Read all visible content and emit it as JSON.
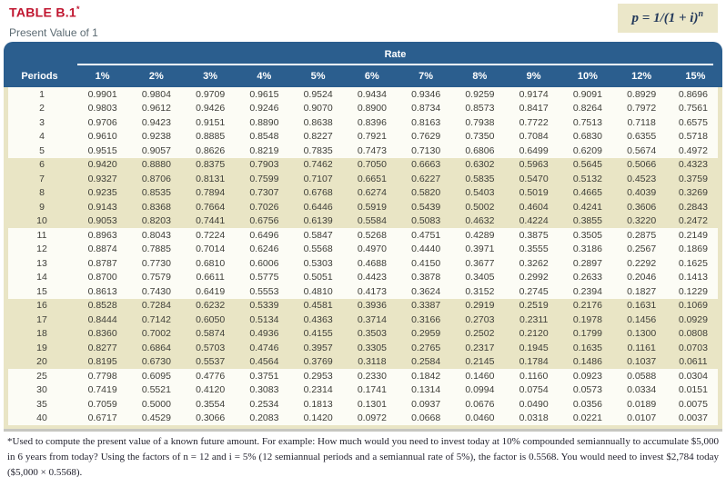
{
  "header": {
    "title": "TABLE B.1",
    "title_mark": "*",
    "subtitle": "Present Value of 1",
    "formula": {
      "body": "p = 1/(1 + i)",
      "exponent": "n"
    }
  },
  "table": {
    "rate_label": "Rate",
    "periods_label": "Periods",
    "rate_columns": [
      "1%",
      "2%",
      "3%",
      "4%",
      "5%",
      "6%",
      "7%",
      "8%",
      "9%",
      "10%",
      "12%",
      "15%"
    ],
    "rows": [
      {
        "period": "1",
        "values": [
          "0.9901",
          "0.9804",
          "0.9709",
          "0.9615",
          "0.9524",
          "0.9434",
          "0.9346",
          "0.9259",
          "0.9174",
          "0.9091",
          "0.8929",
          "0.8696"
        ]
      },
      {
        "period": "2",
        "values": [
          "0.9803",
          "0.9612",
          "0.9426",
          "0.9246",
          "0.9070",
          "0.8900",
          "0.8734",
          "0.8573",
          "0.8417",
          "0.8264",
          "0.7972",
          "0.7561"
        ]
      },
      {
        "period": "3",
        "values": [
          "0.9706",
          "0.9423",
          "0.9151",
          "0.8890",
          "0.8638",
          "0.8396",
          "0.8163",
          "0.7938",
          "0.7722",
          "0.7513",
          "0.7118",
          "0.6575"
        ]
      },
      {
        "period": "4",
        "values": [
          "0.9610",
          "0.9238",
          "0.8885",
          "0.8548",
          "0.8227",
          "0.7921",
          "0.7629",
          "0.7350",
          "0.7084",
          "0.6830",
          "0.6355",
          "0.5718"
        ]
      },
      {
        "period": "5",
        "values": [
          "0.9515",
          "0.9057",
          "0.8626",
          "0.8219",
          "0.7835",
          "0.7473",
          "0.7130",
          "0.6806",
          "0.6499",
          "0.6209",
          "0.5674",
          "0.4972"
        ]
      },
      {
        "period": "6",
        "values": [
          "0.9420",
          "0.8880",
          "0.8375",
          "0.7903",
          "0.7462",
          "0.7050",
          "0.6663",
          "0.6302",
          "0.5963",
          "0.5645",
          "0.5066",
          "0.4323"
        ]
      },
      {
        "period": "7",
        "values": [
          "0.9327",
          "0.8706",
          "0.8131",
          "0.7599",
          "0.7107",
          "0.6651",
          "0.6227",
          "0.5835",
          "0.5470",
          "0.5132",
          "0.4523",
          "0.3759"
        ]
      },
      {
        "period": "8",
        "values": [
          "0.9235",
          "0.8535",
          "0.7894",
          "0.7307",
          "0.6768",
          "0.6274",
          "0.5820",
          "0.5403",
          "0.5019",
          "0.4665",
          "0.4039",
          "0.3269"
        ]
      },
      {
        "period": "9",
        "values": [
          "0.9143",
          "0.8368",
          "0.7664",
          "0.7026",
          "0.6446",
          "0.5919",
          "0.5439",
          "0.5002",
          "0.4604",
          "0.4241",
          "0.3606",
          "0.2843"
        ]
      },
      {
        "period": "10",
        "values": [
          "0.9053",
          "0.8203",
          "0.7441",
          "0.6756",
          "0.6139",
          "0.5584",
          "0.5083",
          "0.4632",
          "0.4224",
          "0.3855",
          "0.3220",
          "0.2472"
        ]
      },
      {
        "period": "11",
        "values": [
          "0.8963",
          "0.8043",
          "0.7224",
          "0.6496",
          "0.5847",
          "0.5268",
          "0.4751",
          "0.4289",
          "0.3875",
          "0.3505",
          "0.2875",
          "0.2149"
        ]
      },
      {
        "period": "12",
        "values": [
          "0.8874",
          "0.7885",
          "0.7014",
          "0.6246",
          "0.5568",
          "0.4970",
          "0.4440",
          "0.3971",
          "0.3555",
          "0.3186",
          "0.2567",
          "0.1869"
        ]
      },
      {
        "period": "13",
        "values": [
          "0.8787",
          "0.7730",
          "0.6810",
          "0.6006",
          "0.5303",
          "0.4688",
          "0.4150",
          "0.3677",
          "0.3262",
          "0.2897",
          "0.2292",
          "0.1625"
        ]
      },
      {
        "period": "14",
        "values": [
          "0.8700",
          "0.7579",
          "0.6611",
          "0.5775",
          "0.5051",
          "0.4423",
          "0.3878",
          "0.3405",
          "0.2992",
          "0.2633",
          "0.2046",
          "0.1413"
        ]
      },
      {
        "period": "15",
        "values": [
          "0.8613",
          "0.7430",
          "0.6419",
          "0.5553",
          "0.4810",
          "0.4173",
          "0.3624",
          "0.3152",
          "0.2745",
          "0.2394",
          "0.1827",
          "0.1229"
        ]
      },
      {
        "period": "16",
        "values": [
          "0.8528",
          "0.7284",
          "0.6232",
          "0.5339",
          "0.4581",
          "0.3936",
          "0.3387",
          "0.2919",
          "0.2519",
          "0.2176",
          "0.1631",
          "0.1069"
        ]
      },
      {
        "period": "17",
        "values": [
          "0.8444",
          "0.7142",
          "0.6050",
          "0.5134",
          "0.4363",
          "0.3714",
          "0.3166",
          "0.2703",
          "0.2311",
          "0.1978",
          "0.1456",
          "0.0929"
        ]
      },
      {
        "period": "18",
        "values": [
          "0.8360",
          "0.7002",
          "0.5874",
          "0.4936",
          "0.4155",
          "0.3503",
          "0.2959",
          "0.2502",
          "0.2120",
          "0.1799",
          "0.1300",
          "0.0808"
        ]
      },
      {
        "period": "19",
        "values": [
          "0.8277",
          "0.6864",
          "0.5703",
          "0.4746",
          "0.3957",
          "0.3305",
          "0.2765",
          "0.2317",
          "0.1945",
          "0.1635",
          "0.1161",
          "0.0703"
        ]
      },
      {
        "period": "20",
        "values": [
          "0.8195",
          "0.6730",
          "0.5537",
          "0.4564",
          "0.3769",
          "0.3118",
          "0.2584",
          "0.2145",
          "0.1784",
          "0.1486",
          "0.1037",
          "0.0611"
        ]
      },
      {
        "period": "25",
        "values": [
          "0.7798",
          "0.6095",
          "0.4776",
          "0.3751",
          "0.2953",
          "0.2330",
          "0.1842",
          "0.1460",
          "0.1160",
          "0.0923",
          "0.0588",
          "0.0304"
        ]
      },
      {
        "period": "30",
        "values": [
          "0.7419",
          "0.5521",
          "0.4120",
          "0.3083",
          "0.2314",
          "0.1741",
          "0.1314",
          "0.0994",
          "0.0754",
          "0.0573",
          "0.0334",
          "0.0151"
        ]
      },
      {
        "period": "35",
        "values": [
          "0.7059",
          "0.5000",
          "0.3554",
          "0.2534",
          "0.1813",
          "0.1301",
          "0.0937",
          "0.0676",
          "0.0490",
          "0.0356",
          "0.0189",
          "0.0075"
        ]
      },
      {
        "period": "40",
        "values": [
          "0.6717",
          "0.4529",
          "0.3066",
          "0.2083",
          "0.1420",
          "0.0972",
          "0.0668",
          "0.0460",
          "0.0318",
          "0.0221",
          "0.0107",
          "0.0037"
        ]
      }
    ]
  },
  "footnote": "*Used to compute the present value of a known future amount. For example: How much would you need to invest today at 10% compounded semiannually to accumulate $5,000 in 6 years from today? Using the factors of n = 12 and i = 5% (12 semiannual periods and a semiannual rate of 5%), the factor is 0.5568. You would need to invest $2,784 today ($5,000 × 0.5568).",
  "colors": {
    "title_red": "#C0152F",
    "header_blue": "#2B5E8E",
    "band_beige": "#E9E5C5",
    "formula_box_bg": "#EBE7C9",
    "bottom_rule_gray": "#C6C6C0"
  }
}
